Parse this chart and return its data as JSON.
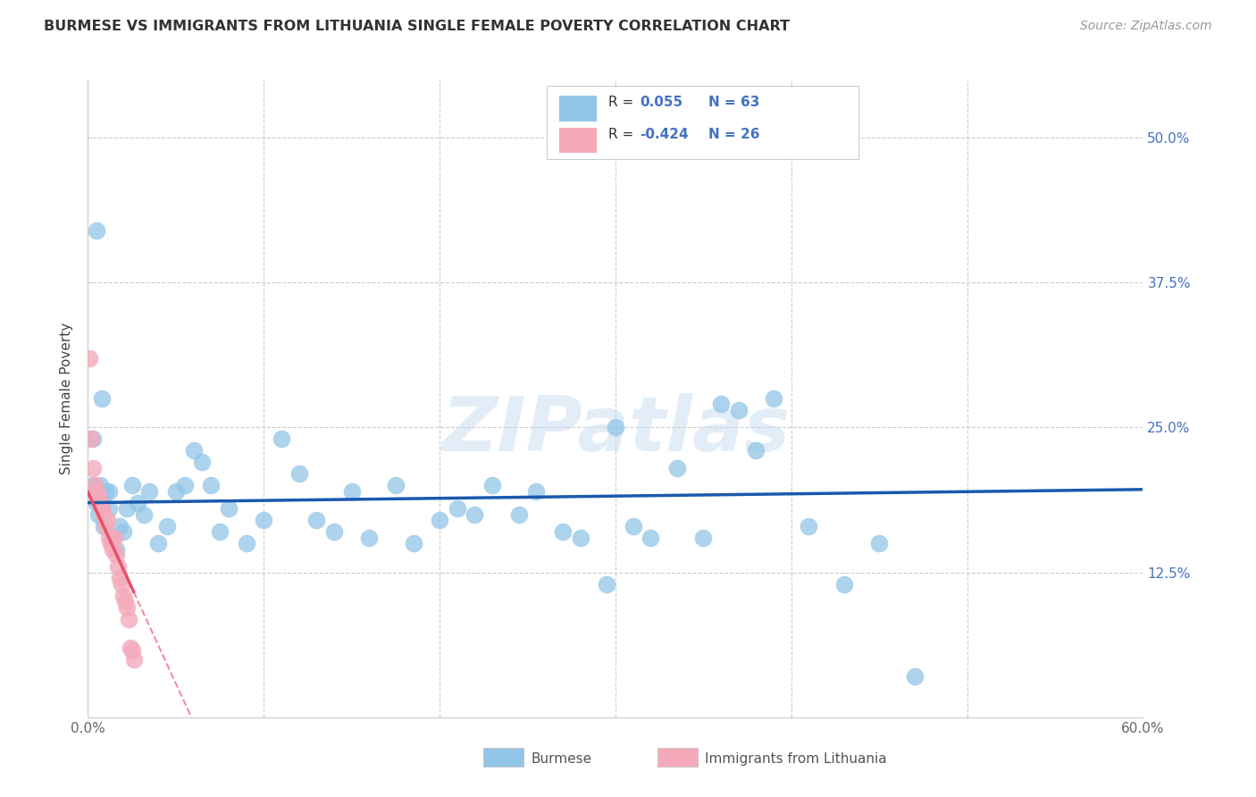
{
  "title": "BURMESE VS IMMIGRANTS FROM LITHUANIA SINGLE FEMALE POVERTY CORRELATION CHART",
  "source": "Source: ZipAtlas.com",
  "ylabel": "Single Female Poverty",
  "xlim": [
    0.0,
    0.6
  ],
  "ylim": [
    0.0,
    0.55
  ],
  "xticks": [
    0.0,
    0.1,
    0.2,
    0.3,
    0.4,
    0.5,
    0.6
  ],
  "xticklabels": [
    "0.0%",
    "",
    "",
    "",
    "",
    "",
    "60.0%"
  ],
  "yticks": [
    0.0,
    0.125,
    0.25,
    0.375,
    0.5
  ],
  "yticklabels": [
    "",
    "12.5%",
    "25.0%",
    "37.5%",
    "50.0%"
  ],
  "burmese_color": "#92C5E8",
  "lithuania_color": "#F4AABB",
  "burmese_R": 0.055,
  "burmese_N": 63,
  "lithuania_R": -0.424,
  "lithuania_N": 26,
  "trend_blue_color": "#1A5AAE",
  "trend_pink_color": "#E8506A",
  "watermark": "ZIPatlas",
  "burmese_x": [
    0.003,
    0.004,
    0.005,
    0.006,
    0.007,
    0.008,
    0.009,
    0.01,
    0.012,
    0.014,
    0.016,
    0.018,
    0.02,
    0.022,
    0.025,
    0.028,
    0.032,
    0.035,
    0.04,
    0.045,
    0.05,
    0.055,
    0.06,
    0.065,
    0.07,
    0.075,
    0.08,
    0.09,
    0.1,
    0.11,
    0.12,
    0.13,
    0.14,
    0.15,
    0.16,
    0.175,
    0.185,
    0.2,
    0.21,
    0.22,
    0.23,
    0.245,
    0.255,
    0.27,
    0.28,
    0.295,
    0.31,
    0.32,
    0.335,
    0.35,
    0.37,
    0.39,
    0.41,
    0.43,
    0.45,
    0.47,
    0.3,
    0.36,
    0.005,
    0.008,
    0.012,
    0.003,
    0.38
  ],
  "burmese_y": [
    0.2,
    0.195,
    0.185,
    0.175,
    0.2,
    0.185,
    0.165,
    0.195,
    0.18,
    0.155,
    0.145,
    0.165,
    0.16,
    0.18,
    0.2,
    0.185,
    0.175,
    0.195,
    0.15,
    0.165,
    0.195,
    0.2,
    0.23,
    0.22,
    0.2,
    0.16,
    0.18,
    0.15,
    0.17,
    0.24,
    0.21,
    0.17,
    0.16,
    0.195,
    0.155,
    0.2,
    0.15,
    0.17,
    0.18,
    0.175,
    0.2,
    0.175,
    0.195,
    0.16,
    0.155,
    0.115,
    0.165,
    0.155,
    0.215,
    0.155,
    0.265,
    0.275,
    0.165,
    0.115,
    0.15,
    0.035,
    0.25,
    0.27,
    0.42,
    0.275,
    0.195,
    0.24,
    0.23
  ],
  "lithuania_x": [
    0.001,
    0.002,
    0.003,
    0.004,
    0.005,
    0.006,
    0.007,
    0.008,
    0.009,
    0.01,
    0.011,
    0.012,
    0.013,
    0.014,
    0.015,
    0.016,
    0.017,
    0.018,
    0.019,
    0.02,
    0.021,
    0.022,
    0.023,
    0.024,
    0.025,
    0.026
  ],
  "lithuania_y": [
    0.31,
    0.24,
    0.215,
    0.2,
    0.195,
    0.19,
    0.185,
    0.18,
    0.175,
    0.165,
    0.17,
    0.155,
    0.15,
    0.145,
    0.155,
    0.14,
    0.13,
    0.12,
    0.115,
    0.105,
    0.1,
    0.095,
    0.085,
    0.06,
    0.058,
    0.05
  ]
}
